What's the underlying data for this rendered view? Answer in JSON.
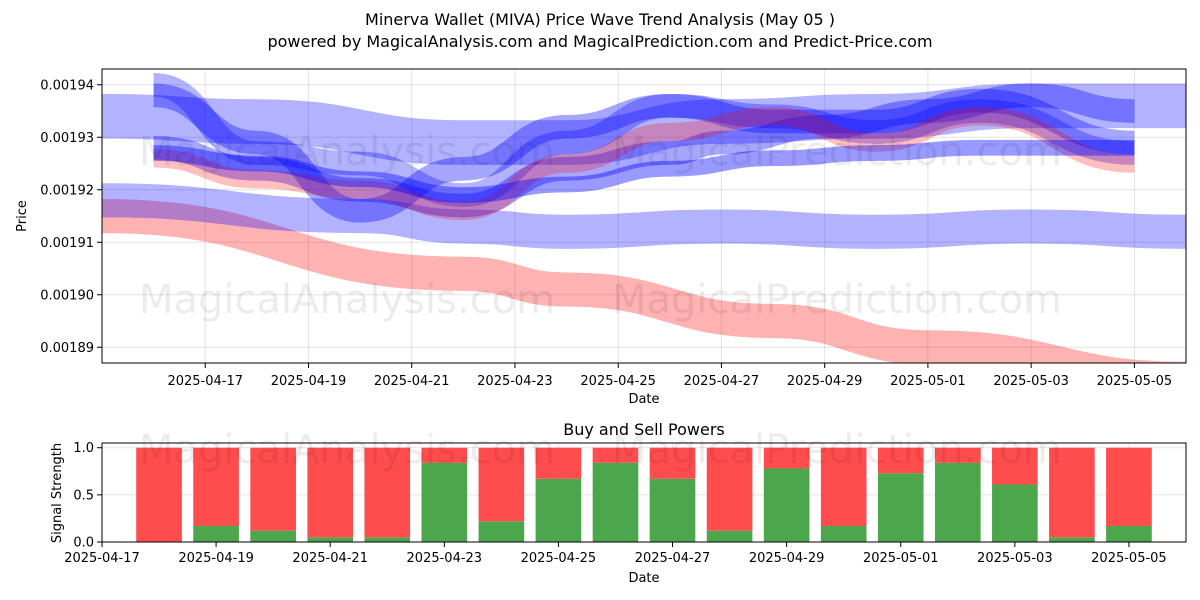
{
  "title": "Minerva Wallet (MIVA) Price Wave Trend Analysis (May 05 )",
  "subtitle": "powered by MagicalAnalysis.com and MagicalPrediction.com and Predict-Price.com",
  "watermarks": [
    "MagicalAnalysis.com",
    "MagicalPrediction.com"
  ],
  "colors": {
    "blue": "#0000ff",
    "red": "#ff0000",
    "buy": "#4ca64c",
    "sell": "#ff4c4c"
  },
  "chart_data": [
    {
      "type": "line",
      "xlabel": "Date",
      "ylabel": "Price",
      "xlim": [
        "2025-04-15T00:00",
        "2025-05-06T00:00"
      ],
      "ylim": [
        0.001887,
        0.001943
      ],
      "x_ticks": [
        "2025-04-17",
        "2025-04-19",
        "2025-04-21",
        "2025-04-23",
        "2025-04-25",
        "2025-04-27",
        "2025-04-29",
        "2025-05-01",
        "2025-05-03",
        "2025-05-05"
      ],
      "y_ticks": [
        "0.00189",
        "0.00190",
        "0.00191",
        "0.00192",
        "0.00193",
        "0.00194"
      ],
      "grid": true,
      "bands": [
        {
          "color": "red",
          "opacity": 0.3,
          "width": 6.5e-06,
          "x": [
            "2025-04-15",
            "2025-04-22",
            "2025-04-24",
            "2025-04-28",
            "2025-05-01",
            "2025-05-06"
          ],
          "y": [
            0.001915,
            0.001904,
            0.001901,
            0.001895,
            0.00189,
            0.001884
          ]
        },
        {
          "color": "blue",
          "opacity": 0.3,
          "width": 6.5e-06,
          "x": [
            "2025-04-15",
            "2025-04-20",
            "2025-04-22",
            "2025-04-24",
            "2025-04-27",
            "2025-04-30",
            "2025-05-03",
            "2025-05-06"
          ],
          "y": [
            0.001918,
            0.001915,
            0.001913,
            0.001912,
            0.001913,
            0.001912,
            0.001913,
            0.001912
          ]
        },
        {
          "color": "blue",
          "opacity": 0.3,
          "width": 8.5e-06,
          "x": [
            "2025-04-15",
            "2025-04-18",
            "2025-04-22",
            "2025-04-24",
            "2025-04-27",
            "2025-04-30",
            "2025-05-03",
            "2025-05-06"
          ],
          "y": [
            0.001934,
            0.001933,
            0.001929,
            0.001929,
            0.001933,
            0.001934,
            0.001936,
            0.001936
          ]
        },
        {
          "color": "blue",
          "opacity": 0.35,
          "width": 4.5e-06,
          "x": [
            "2025-04-16",
            "2025-04-18",
            "2025-04-20",
            "2025-04-22",
            "2025-04-24",
            "2025-04-26",
            "2025-04-28",
            "2025-04-30",
            "2025-05-02",
            "2025-05-05"
          ],
          "y": [
            0.001938,
            0.001929,
            0.001916,
            0.001924,
            0.001932,
            0.001936,
            0.001933,
            0.001933,
            0.001937,
            0.001929
          ]
        },
        {
          "color": "blue",
          "opacity": 0.35,
          "width": 4.5e-06,
          "x": [
            "2025-04-16",
            "2025-04-18",
            "2025-04-20",
            "2025-04-22",
            "2025-04-24",
            "2025-04-26",
            "2025-04-27",
            "2025-04-29",
            "2025-05-01",
            "2025-05-03",
            "2025-05-05"
          ],
          "y": [
            0.001928,
            0.001924,
            0.00192,
            0.001917,
            0.001924,
            0.001927,
            0.001929,
            0.001932,
            0.001935,
            0.001938,
            0.001935
          ]
        },
        {
          "color": "blue",
          "opacity": 0.3,
          "width": 4.5e-06,
          "x": [
            "2025-04-16",
            "2025-04-18",
            "2025-04-20",
            "2025-04-22",
            "2025-04-24",
            "2025-04-26",
            "2025-04-28",
            "2025-04-30",
            "2025-05-02",
            "2025-05-05"
          ],
          "y": [
            0.00194,
            0.001927,
            0.001925,
            0.001919,
            0.001929,
            0.001936,
            0.001934,
            0.001931,
            0.001935,
            0.001927
          ]
        },
        {
          "color": "red",
          "opacity": 0.25,
          "width": 3.5e-06,
          "x": [
            "2025-04-16",
            "2025-04-18",
            "2025-04-20",
            "2025-04-22",
            "2025-04-24",
            "2025-04-26",
            "2025-04-28",
            "2025-04-30",
            "2025-05-02",
            "2025-05-05"
          ],
          "y": [
            0.001926,
            0.001922,
            0.00192,
            0.001916,
            0.001925,
            0.001931,
            0.001934,
            0.001929,
            0.001934,
            0.001925
          ]
        },
        {
          "color": "blue",
          "opacity": 0.4,
          "width": 3e-06,
          "x": [
            "2025-04-16",
            "2025-04-18",
            "2025-04-20",
            "2025-04-22",
            "2025-04-24",
            "2025-04-26",
            "2025-04-28",
            "2025-04-30",
            "2025-05-02",
            "2025-05-05"
          ],
          "y": [
            0.001927,
            0.001925,
            0.001922,
            0.001919,
            0.001921,
            0.001924,
            0.001926,
            0.001927,
            0.001928,
            0.001928
          ]
        }
      ]
    },
    {
      "type": "bar",
      "title": "Buy and Sell Powers",
      "xlabel": "Date",
      "ylabel": "Signal Strength",
      "xlim": [
        "2025-04-17T00:00",
        "2025-05-06T00:00"
      ],
      "ylim": [
        0,
        1.05
      ],
      "x_ticks": [
        "2025-04-17",
        "2025-04-19",
        "2025-04-21",
        "2025-04-23",
        "2025-04-25",
        "2025-04-27",
        "2025-04-29",
        "2025-05-01",
        "2025-05-03",
        "2025-05-05"
      ],
      "y_ticks": [
        "0.0",
        "0.5",
        "1.0"
      ],
      "categories": [
        "2025-04-18",
        "2025-04-19",
        "2025-04-20",
        "2025-04-21",
        "2025-04-22",
        "2025-04-23",
        "2025-04-24",
        "2025-04-25",
        "2025-04-26",
        "2025-04-27",
        "2025-04-28",
        "2025-04-29",
        "2025-04-30",
        "2025-05-01",
        "2025-05-02",
        "2025-05-03",
        "2025-05-04",
        "2025-05-05"
      ],
      "series": [
        {
          "color": "buy",
          "values": [
            0.0,
            0.17,
            0.12,
            0.05,
            0.05,
            0.84,
            0.22,
            0.67,
            0.84,
            0.67,
            0.12,
            0.78,
            0.17,
            0.73,
            0.84,
            0.61,
            0.05,
            0.17
          ]
        },
        {
          "color": "sell",
          "values": [
            1.0,
            0.83,
            0.88,
            0.95,
            0.95,
            0.16,
            0.78,
            0.33,
            0.16,
            0.33,
            0.88,
            0.22,
            0.83,
            0.27,
            0.16,
            0.39,
            0.95,
            0.83
          ]
        }
      ]
    }
  ]
}
